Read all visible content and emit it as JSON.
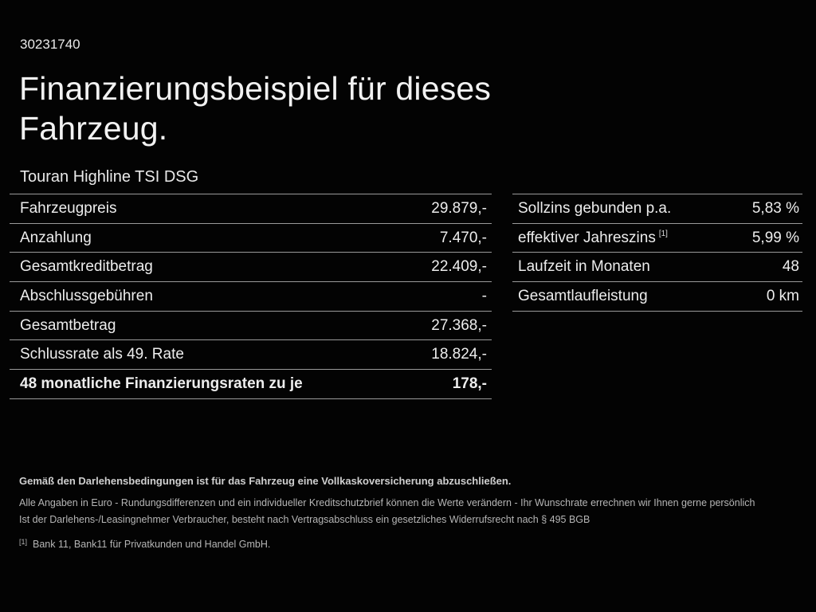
{
  "page": {
    "background_color": "#030303",
    "text_color": "#ededed",
    "separator_color": "#9a9a9a"
  },
  "header": {
    "vehicle_id": "30231740",
    "title_line1": "Finanzierungsbeispiel für dieses",
    "title_line2": "Fahrzeug.",
    "vehicle_name": "Touran Highline TSI DSG"
  },
  "left_table": {
    "rows": [
      {
        "label": "Fahrzeugpreis",
        "value": "29.879,-",
        "bold": false
      },
      {
        "label": "Anzahlung",
        "value": "7.470,-",
        "bold": false
      },
      {
        "label": "Gesamtkreditbetrag",
        "value": "22.409,-",
        "bold": false
      },
      {
        "label": "Abschlussgebühren",
        "value": "-",
        "bold": false
      },
      {
        "label": "Gesamtbetrag",
        "value": "27.368,-",
        "bold": false
      },
      {
        "label": "Schlussrate als 49. Rate",
        "value": "18.824,-",
        "bold": false
      },
      {
        "label": "48 monatliche Finanzierungsraten zu je",
        "value": "178,-",
        "bold": true
      }
    ]
  },
  "right_table": {
    "rows": [
      {
        "label": "Sollzins gebunden p.a.",
        "sup": "",
        "value": "5,83 %"
      },
      {
        "label": "effektiver Jahreszins",
        "sup": "[1]",
        "value": "5,99 %"
      },
      {
        "label": "Laufzeit in Monaten",
        "sup": "",
        "value": "48"
      },
      {
        "label": "Gesamtlaufleistung",
        "sup": "",
        "value": "0 km"
      }
    ]
  },
  "footer": {
    "insurance_note": "Gemäß den Darlehensbedingungen ist für das Fahrzeug eine Vollkaskoversicherung abzuschließen.",
    "disclaimer_line1": "Alle Angaben in Euro - Rundungsdifferenzen und ein individueller Kreditschutzbrief können die Werte verändern - Ihr Wunschrate errechnen wir Ihnen gerne persönlich",
    "disclaimer_line2": "Ist der Darlehens-/Leasingnehmer Verbraucher, besteht nach Vertragsabschluss ein gesetzliches Widerrufsrecht nach § 495 BGB",
    "footnote_marker": "[1]",
    "footnote_text": "Bank 11, Bank11 für Privatkunden und Handel GmbH."
  }
}
